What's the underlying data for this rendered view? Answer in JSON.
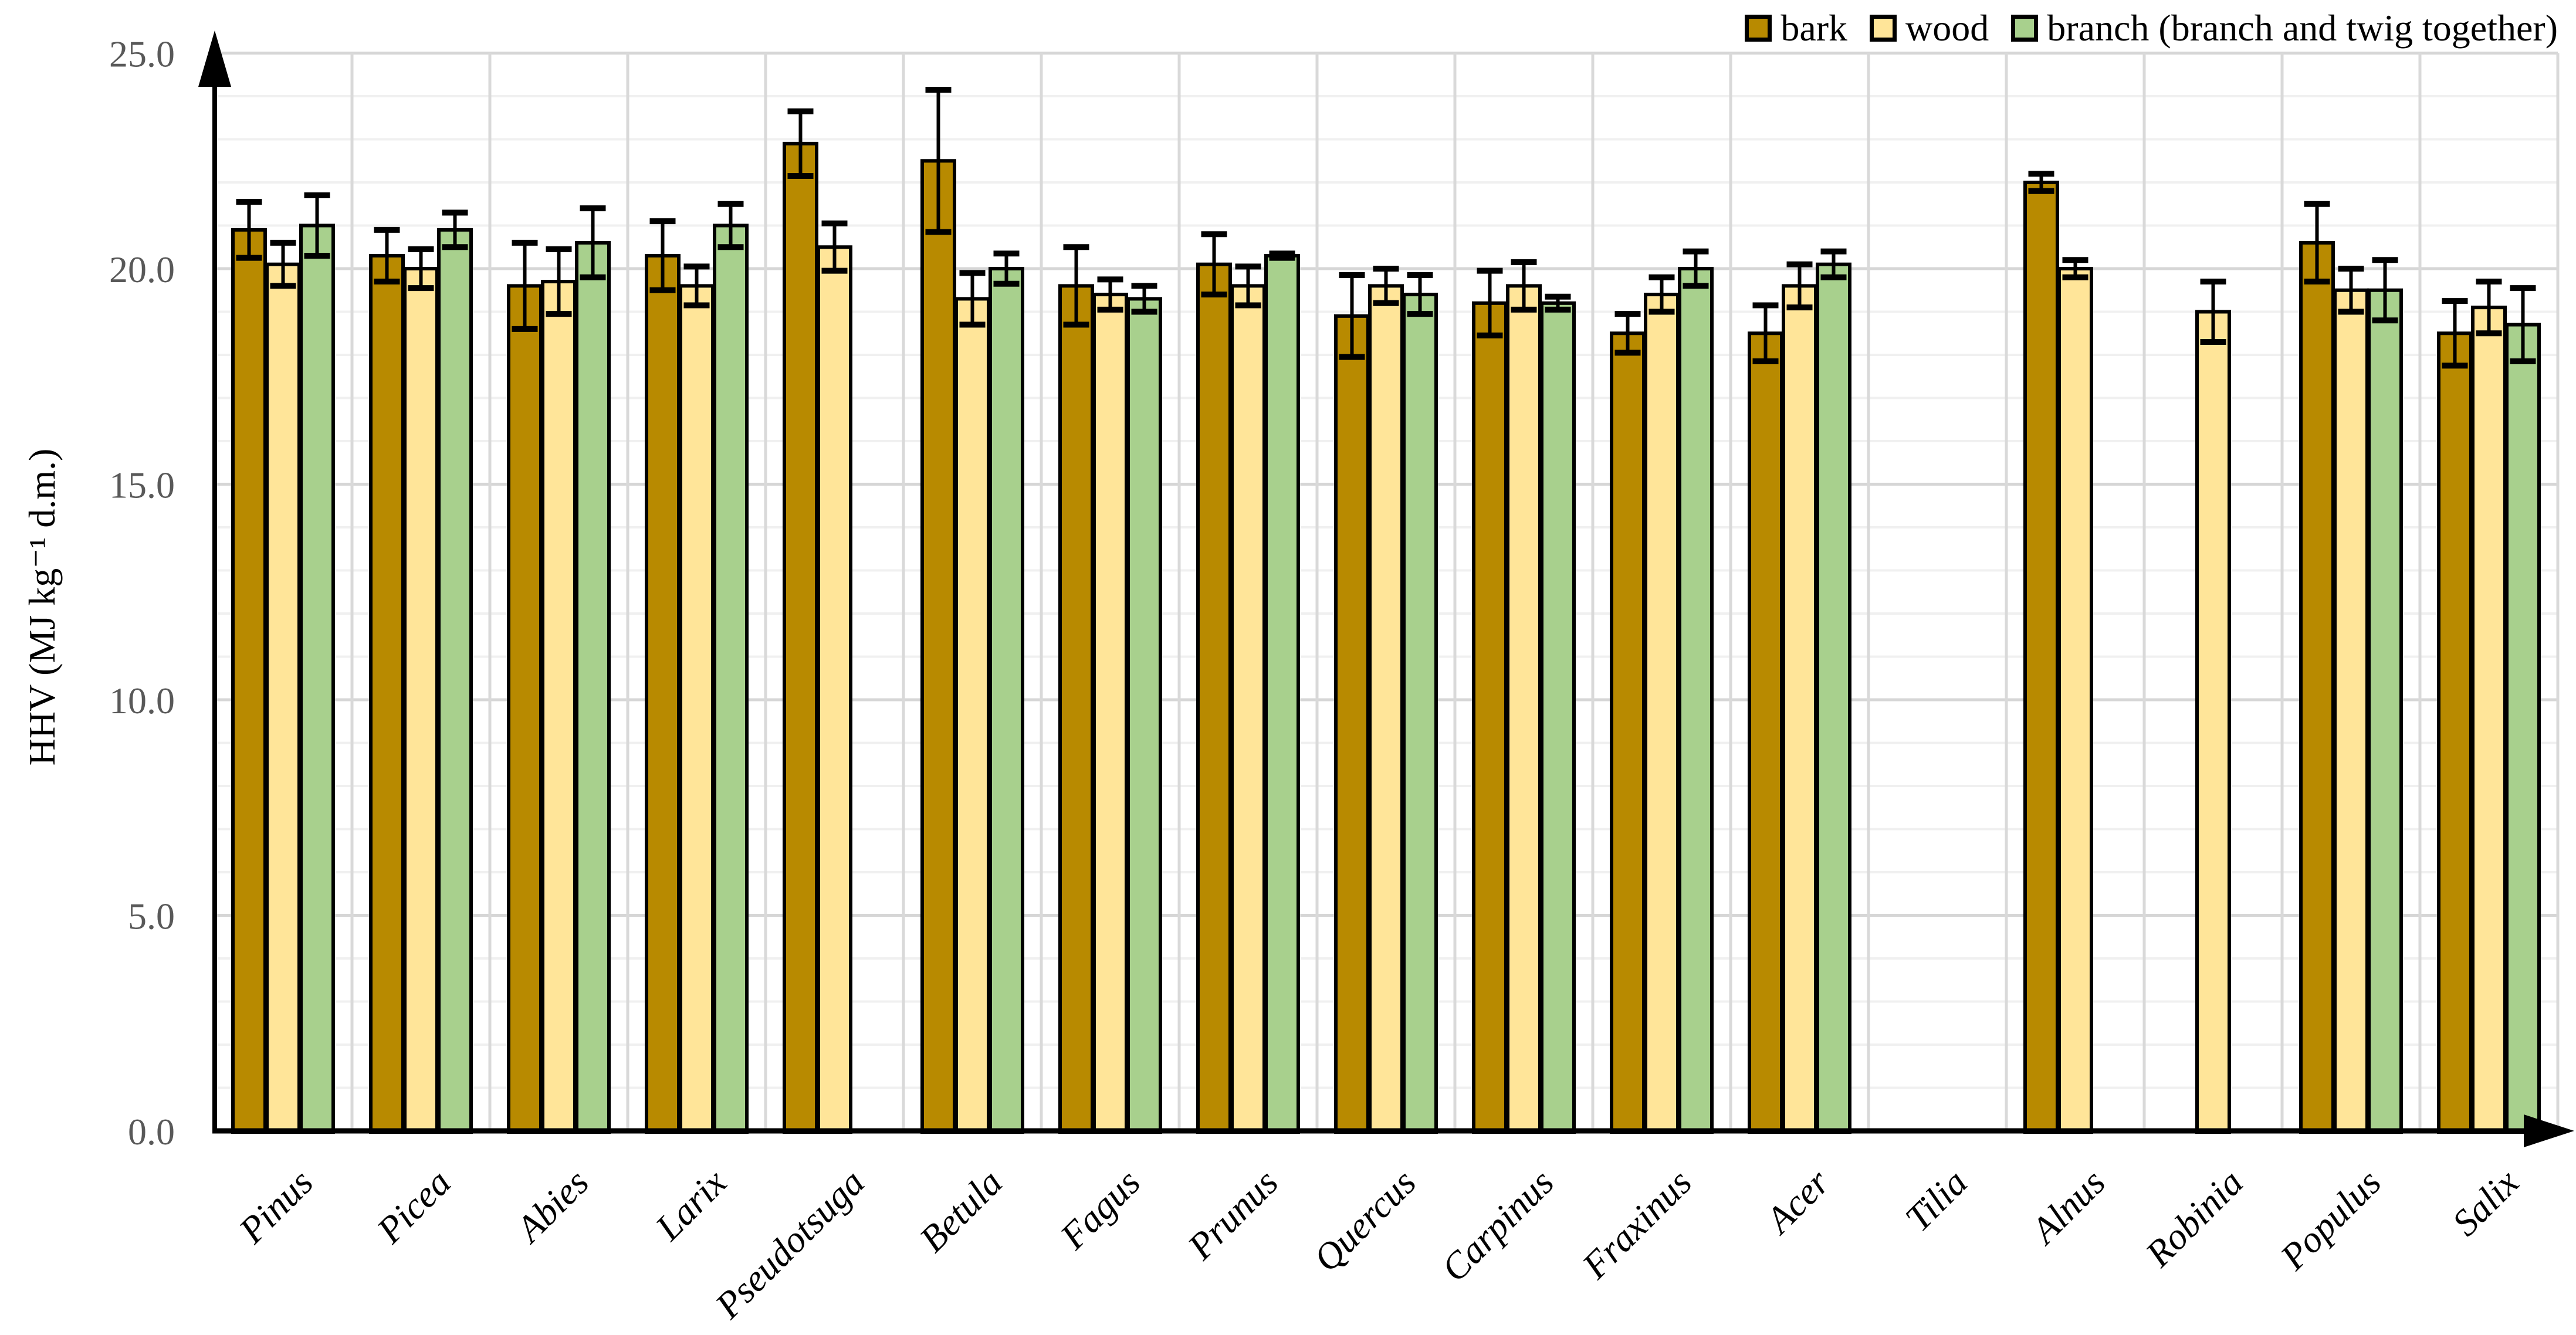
{
  "page": {
    "background": "#FFFFFF"
  },
  "chart_data": {
    "type": "bar",
    "title": "",
    "xlabel": "",
    "ylabel": "HHV (MJ kg⁻¹ d.m.)",
    "ylim": [
      0,
      25
    ],
    "ytick_values": [
      0,
      5,
      10,
      15,
      20,
      25
    ],
    "ytick_labels": [
      "0.0",
      "5.0",
      "10.0",
      "15.0",
      "20.0",
      "25.0"
    ],
    "minor_grid_step": 1,
    "major_grid_step": 5,
    "grid": {
      "minor_color": "#F0F0F0",
      "major_color": "#D6D6D6",
      "vertical_color": "#D9D9D9"
    },
    "axis_color": "#000000",
    "tick_label_color": "#595959",
    "legend_position": "top-right",
    "error_bars": true,
    "categories": [
      "Pinus",
      "Picea",
      "Abies",
      "Larix",
      "Pseudotsuga",
      "Betula",
      "Fagus",
      "Prunus",
      "Quercus",
      "Carpinus",
      "Fraxinus",
      "Acer",
      "Tilia",
      "Alnus",
      "Robinia",
      "Populus",
      "Salix"
    ],
    "series": [
      {
        "name": "bark",
        "color": "#B88A00",
        "values": [
          20.9,
          20.3,
          19.6,
          20.3,
          22.9,
          22.5,
          19.6,
          20.1,
          18.9,
          19.2,
          18.5,
          18.5,
          null,
          22.0,
          null,
          20.6,
          18.5
        ],
        "errors": [
          0.65,
          0.6,
          1.0,
          0.8,
          0.75,
          1.65,
          0.9,
          0.7,
          0.95,
          0.75,
          0.45,
          0.65,
          null,
          0.2,
          null,
          0.9,
          0.75
        ]
      },
      {
        "name": "wood",
        "color": "#FFE599",
        "values": [
          20.1,
          20.0,
          19.7,
          19.6,
          20.5,
          19.3,
          19.4,
          19.6,
          19.6,
          19.6,
          19.4,
          19.6,
          null,
          20.0,
          19.0,
          19.5,
          19.1
        ],
        "errors": [
          0.5,
          0.45,
          0.75,
          0.45,
          0.55,
          0.6,
          0.35,
          0.45,
          0.4,
          0.55,
          0.4,
          0.5,
          null,
          0.2,
          0.7,
          0.5,
          0.6
        ]
      },
      {
        "name": "branch (branch and twig together)",
        "color": "#A8D08D",
        "values": [
          21.0,
          20.9,
          20.6,
          21.0,
          null,
          20.0,
          19.3,
          20.3,
          19.4,
          19.2,
          20.0,
          20.1,
          null,
          null,
          null,
          19.5,
          18.7
        ],
        "errors": [
          0.7,
          0.4,
          0.8,
          0.5,
          null,
          0.35,
          0.3,
          0.05,
          0.45,
          0.15,
          0.4,
          0.3,
          null,
          null,
          null,
          0.7,
          0.85
        ]
      }
    ]
  }
}
